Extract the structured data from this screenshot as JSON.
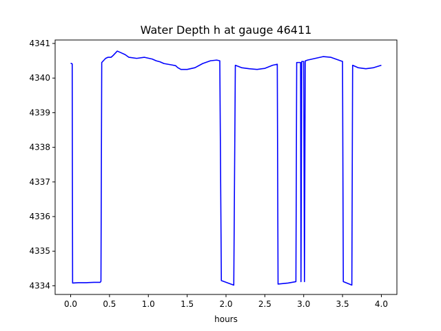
{
  "chart_data": {
    "type": "line",
    "title": "Water Depth h at gauge 46411",
    "xlabel": "hours",
    "ylabel": "",
    "xlim": [
      -0.2,
      4.2
    ],
    "ylim": [
      4333.75,
      4341.1
    ],
    "xticks": [
      0.0,
      0.5,
      1.0,
      1.5,
      2.0,
      2.5,
      3.0,
      3.5,
      4.0
    ],
    "xtick_labels": [
      "0.0",
      "0.5",
      "1.0",
      "1.5",
      "2.0",
      "2.5",
      "3.0",
      "3.5",
      "4.0"
    ],
    "yticks": [
      4334,
      4335,
      4336,
      4337,
      4338,
      4339,
      4340,
      4341
    ],
    "ytick_labels": [
      "4334",
      "4335",
      "4336",
      "4337",
      "4338",
      "4339",
      "4340",
      "4341"
    ],
    "grid": false,
    "series": [
      {
        "color": "#0000ff",
        "x": [
          0.0,
          0.02,
          0.025,
          0.1,
          0.2,
          0.3,
          0.38,
          0.39,
          0.4,
          0.45,
          0.48,
          0.52,
          0.55,
          0.6,
          0.65,
          0.7,
          0.75,
          0.85,
          0.95,
          1.05,
          1.1,
          1.15,
          1.2,
          1.25,
          1.3,
          1.35,
          1.38,
          1.42,
          1.5,
          1.6,
          1.7,
          1.8,
          1.88,
          1.92,
          1.94,
          2.1,
          2.12,
          2.2,
          2.3,
          2.4,
          2.5,
          2.6,
          2.66,
          2.67,
          2.8,
          2.9,
          2.91,
          2.96,
          2.965,
          2.975,
          3.0,
          3.01,
          3.02,
          3.025,
          3.05,
          3.15,
          3.25,
          3.35,
          3.45,
          3.5,
          3.51,
          3.62,
          3.63,
          3.7,
          3.8,
          3.9,
          4.0
        ],
        "y": [
          4340.43,
          4340.41,
          4334.08,
          4334.09,
          4334.09,
          4334.1,
          4334.1,
          4334.13,
          4340.45,
          4340.57,
          4340.6,
          4340.6,
          4340.66,
          4340.78,
          4340.73,
          4340.68,
          4340.6,
          4340.57,
          4340.6,
          4340.55,
          4340.5,
          4340.47,
          4340.42,
          4340.4,
          4340.38,
          4340.36,
          4340.3,
          4340.25,
          4340.25,
          4340.3,
          4340.42,
          4340.5,
          4340.52,
          4340.5,
          4334.15,
          4334.02,
          4340.37,
          4340.3,
          4340.27,
          4340.25,
          4340.28,
          4340.37,
          4340.4,
          4334.05,
          4334.08,
          4334.12,
          4340.45,
          4340.45,
          4334.12,
          4340.48,
          4340.48,
          4334.12,
          4340.5,
          4340.5,
          4340.52,
          4340.57,
          4340.62,
          4340.6,
          4340.52,
          4340.48,
          4334.12,
          4334.02,
          4340.37,
          4340.3,
          4340.27,
          4340.3,
          4340.37
        ]
      }
    ]
  }
}
